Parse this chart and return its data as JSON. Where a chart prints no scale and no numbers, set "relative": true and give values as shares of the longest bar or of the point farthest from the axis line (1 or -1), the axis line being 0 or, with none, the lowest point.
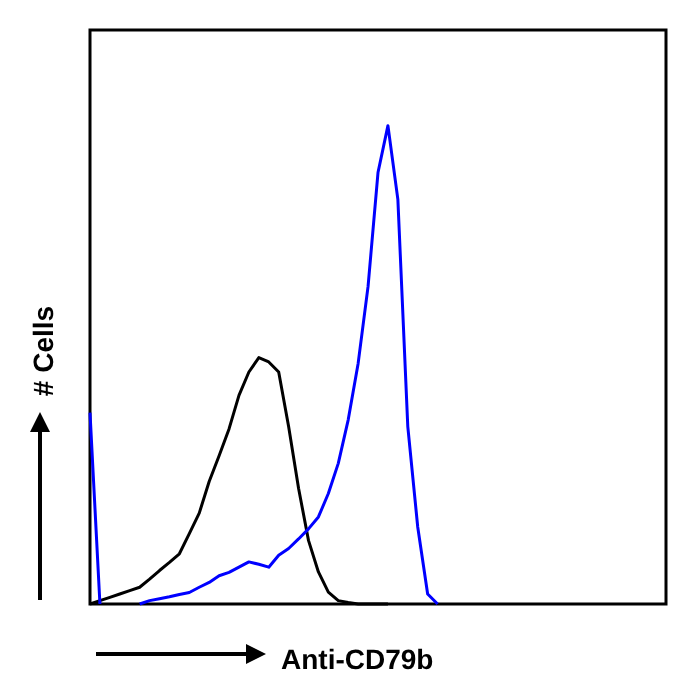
{
  "chart_data": {
    "type": "line",
    "relative": true,
    "xlabel": "Anti-CD79b",
    "ylabel": "# Cells",
    "grid": false,
    "categories": [
      null,
      null,
      null,
      null,
      null,
      null,
      null,
      null,
      null,
      null,
      null,
      null,
      null,
      null,
      null,
      null,
      null,
      null,
      null,
      null,
      null,
      null,
      null,
      null,
      null,
      null,
      null,
      null,
      null,
      null,
      null,
      null,
      null,
      null,
      null,
      null,
      null,
      null,
      null,
      null,
      null,
      null,
      null,
      null,
      null,
      null,
      null,
      null,
      null,
      null,
      null,
      null,
      null,
      null,
      null,
      null,
      null,
      null,
      null
    ],
    "series": [
      {
        "color": "#000000",
        "values": [
          0,
          0.007,
          0.014,
          0.021,
          0.028,
          0.035,
          0.052,
          0.07,
          0.087,
          0.105,
          0.147,
          0.19,
          0.256,
          0.31,
          0.366,
          0.436,
          0.485,
          0.515,
          0.506,
          0.485,
          0.371,
          0.242,
          0.133,
          0.067,
          0.025,
          0.007,
          0.003,
          0,
          0,
          0,
          0,
          null,
          null,
          null,
          null,
          null,
          null,
          null,
          null,
          null,
          null,
          null,
          null,
          null,
          null,
          null,
          null,
          null,
          null,
          null,
          null,
          null,
          null,
          null,
          null,
          null,
          null,
          null,
          null
        ]
      },
      {
        "color": "#0000ff",
        "values": [
          0.4,
          0,
          null,
          null,
          null,
          0,
          0.007,
          0.011,
          0.015,
          0.02,
          0.024,
          0.035,
          0.045,
          0.059,
          0.066,
          0.077,
          0.088,
          0.083,
          0.077,
          0.102,
          0.116,
          0.136,
          0.157,
          0.182,
          0.231,
          0.294,
          0.385,
          0.503,
          0.664,
          0.902,
          1,
          0.846,
          0.371,
          0.161,
          0.021,
          0,
          null,
          null,
          null,
          null,
          null,
          null,
          null,
          null,
          null,
          null,
          null,
          null,
          null,
          null,
          null,
          null,
          null,
          null,
          null,
          null,
          null,
          null,
          null
        ]
      }
    ]
  }
}
